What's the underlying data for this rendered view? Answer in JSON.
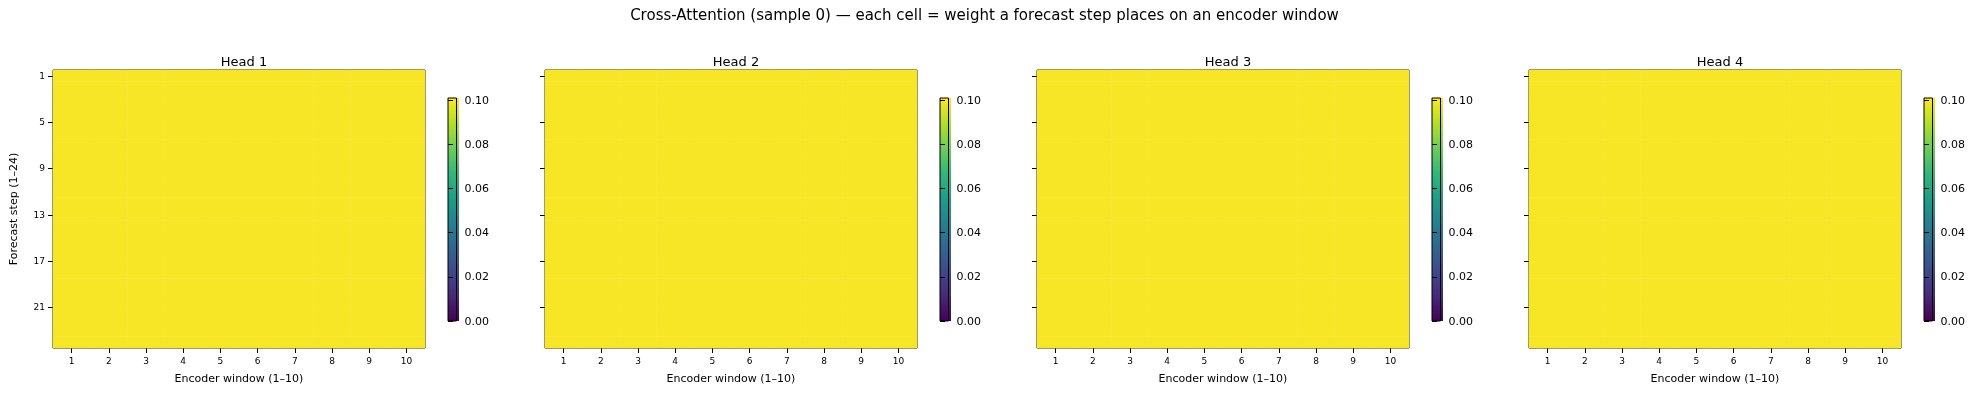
{
  "chart_data": [
    {
      "type": "heatmap",
      "title": "Head 1",
      "xlabel": "Encoder window (1–10)",
      "ylabel": "Forecast step (1–24)",
      "annotations": [
        "Cross-Attention (sample 0) — each cell = weight a forecast step places on an encoder window"
      ],
      "categories": [
        "1",
        "2",
        "3",
        "4",
        "5",
        "6",
        "7",
        "8",
        "9",
        "10"
      ],
      "y_categories": [
        "1",
        null,
        null,
        null,
        "5",
        null,
        null,
        null,
        "9",
        null,
        null,
        null,
        "13",
        null,
        null,
        null,
        "17",
        null,
        null,
        null,
        "21",
        null,
        null,
        null
      ],
      "clim": [
        0,
        0.101
      ],
      "cticks": [
        {
          "value": 0,
          "label": "0.00"
        },
        {
          "value": 0.02,
          "label": "0.02"
        },
        {
          "value": 0.04,
          "label": "0.04"
        },
        {
          "value": 0.06,
          "label": "0.06"
        },
        {
          "value": 0.08,
          "label": "0.08"
        },
        {
          "value": 0.1,
          "label": "0.10"
        }
      ],
      "cells": [
        [
          0.1,
          0.1,
          0.1,
          0.1,
          0.1,
          0.1,
          0.1,
          0.1,
          0.1,
          0.1
        ],
        [
          0.1,
          0.1,
          0.1,
          0.1,
          0.1,
          0.1,
          0.1,
          0.1,
          0.1,
          0.1
        ],
        [
          0.1,
          0.1,
          0.1,
          0.1,
          0.1,
          0.1,
          0.1,
          0.1,
          0.1,
          0.1
        ],
        [
          0.1,
          0.1,
          0.1,
          0.1,
          0.1,
          0.1,
          0.1,
          0.1,
          0.1,
          0.1
        ],
        [
          0.1,
          0.1,
          0.1,
          0.1,
          0.1,
          0.1,
          0.1,
          0.1,
          0.1,
          0.1
        ],
        [
          0.1,
          0.1,
          0.1,
          0.1,
          0.1,
          0.1,
          0.1,
          0.1,
          0.1,
          0.1
        ],
        [
          0.1,
          0.1,
          0.1,
          0.1,
          0.1,
          0.1,
          0.1,
          0.1,
          0.1,
          0.1
        ],
        [
          0.1,
          0.1,
          0.1,
          0.1,
          0.1,
          0.1,
          0.1,
          0.1,
          0.1,
          0.1
        ],
        [
          0.1,
          0.1,
          0.1,
          0.1,
          0.1,
          0.1,
          0.1,
          0.1,
          0.1,
          0.1
        ],
        [
          0.1,
          0.1,
          0.1,
          0.1,
          0.1,
          0.1,
          0.1,
          0.1,
          0.1,
          0.1
        ],
        [
          0.1,
          0.1,
          0.1,
          0.1,
          0.1,
          0.1,
          0.1,
          0.1,
          0.1,
          0.1
        ],
        [
          0.1,
          0.1,
          0.1,
          0.1,
          0.1,
          0.1,
          0.1,
          0.1,
          0.1,
          0.1
        ],
        [
          0.1,
          0.1,
          0.1,
          0.1,
          0.1,
          0.1,
          0.1,
          0.1,
          0.1,
          0.1
        ],
        [
          0.1,
          0.1,
          0.1,
          0.1,
          0.1,
          0.1,
          0.1,
          0.1,
          0.1,
          0.1
        ],
        [
          0.1,
          0.1,
          0.1,
          0.1,
          0.1,
          0.1,
          0.1,
          0.1,
          0.1,
          0.1
        ],
        [
          0.1,
          0.1,
          0.1,
          0.1,
          0.1,
          0.1,
          0.1,
          0.1,
          0.1,
          0.1
        ],
        [
          0.1,
          0.1,
          0.1,
          0.1,
          0.1,
          0.1,
          0.1,
          0.1,
          0.1,
          0.1
        ],
        [
          0.1,
          0.1,
          0.1,
          0.1,
          0.1,
          0.1,
          0.1,
          0.1,
          0.1,
          0.1
        ],
        [
          0.1,
          0.1,
          0.1,
          0.1,
          0.1,
          0.1,
          0.1,
          0.1,
          0.1,
          0.1
        ],
        [
          0.1,
          0.1,
          0.1,
          0.1,
          0.1,
          0.1,
          0.1,
          0.1,
          0.1,
          0.1
        ],
        [
          0.1,
          0.1,
          0.1,
          0.1,
          0.1,
          0.1,
          0.1,
          0.1,
          0.1,
          0.1
        ],
        [
          0.1,
          0.1,
          0.1,
          0.1,
          0.1,
          0.1,
          0.1,
          0.1,
          0.1,
          0.1
        ],
        [
          0.1,
          0.1,
          0.1,
          0.1,
          0.1,
          0.1,
          0.1,
          0.1,
          0.1,
          0.1
        ],
        [
          0.1,
          0.1,
          0.1,
          0.1,
          0.1,
          0.1,
          0.1,
          0.1,
          0.1,
          0.1
        ]
      ]
    },
    {
      "type": "heatmap",
      "title": "Head 2",
      "xlabel": "Encoder window (1–10)",
      "tick_labels": "x",
      "categories": [
        "1",
        "2",
        "3",
        "4",
        "5",
        "6",
        "7",
        "8",
        "9",
        "10"
      ],
      "y_categories": [
        "1",
        null,
        null,
        null,
        "5",
        null,
        null,
        null,
        "9",
        null,
        null,
        null,
        "13",
        null,
        null,
        null,
        "17",
        null,
        null,
        null,
        "21",
        null,
        null,
        null
      ],
      "clim": [
        0,
        0.101
      ],
      "cticks": [
        {
          "value": 0,
          "label": "0.00"
        },
        {
          "value": 0.02,
          "label": "0.02"
        },
        {
          "value": 0.04,
          "label": "0.04"
        },
        {
          "value": 0.06,
          "label": "0.06"
        },
        {
          "value": 0.08,
          "label": "0.08"
        },
        {
          "value": 0.1,
          "label": "0.10"
        }
      ],
      "cells": [
        [
          0.1,
          0.1,
          0.1,
          0.1,
          0.1,
          0.1,
          0.1,
          0.1,
          0.1,
          0.1
        ],
        [
          0.1,
          0.1,
          0.1,
          0.1,
          0.1,
          0.1,
          0.1,
          0.1,
          0.1,
          0.1
        ],
        [
          0.1,
          0.1,
          0.1,
          0.1,
          0.1,
          0.1,
          0.1,
          0.1,
          0.1,
          0.1
        ],
        [
          0.1,
          0.1,
          0.1,
          0.1,
          0.1,
          0.1,
          0.1,
          0.1,
          0.1,
          0.1
        ],
        [
          0.1,
          0.1,
          0.1,
          0.1,
          0.1,
          0.1,
          0.1,
          0.1,
          0.1,
          0.1
        ],
        [
          0.1,
          0.1,
          0.1,
          0.1,
          0.1,
          0.1,
          0.1,
          0.1,
          0.1,
          0.1
        ],
        [
          0.1,
          0.1,
          0.1,
          0.1,
          0.1,
          0.1,
          0.1,
          0.1,
          0.1,
          0.1
        ],
        [
          0.1,
          0.1,
          0.1,
          0.1,
          0.1,
          0.1,
          0.1,
          0.1,
          0.1,
          0.1
        ],
        [
          0.1,
          0.1,
          0.1,
          0.1,
          0.1,
          0.1,
          0.1,
          0.1,
          0.1,
          0.1
        ],
        [
          0.1,
          0.1,
          0.1,
          0.1,
          0.1,
          0.1,
          0.1,
          0.1,
          0.1,
          0.1
        ],
        [
          0.1,
          0.1,
          0.1,
          0.1,
          0.1,
          0.1,
          0.1,
          0.1,
          0.1,
          0.1
        ],
        [
          0.1,
          0.1,
          0.1,
          0.1,
          0.1,
          0.1,
          0.1,
          0.1,
          0.1,
          0.1
        ],
        [
          0.1,
          0.1,
          0.1,
          0.1,
          0.1,
          0.1,
          0.1,
          0.1,
          0.1,
          0.1
        ],
        [
          0.1,
          0.1,
          0.1,
          0.1,
          0.1,
          0.1,
          0.1,
          0.1,
          0.1,
          0.1
        ],
        [
          0.1,
          0.1,
          0.1,
          0.1,
          0.1,
          0.1,
          0.1,
          0.1,
          0.1,
          0.1
        ],
        [
          0.1,
          0.1,
          0.1,
          0.1,
          0.1,
          0.1,
          0.1,
          0.1,
          0.1,
          0.1
        ],
        [
          0.1,
          0.1,
          0.1,
          0.1,
          0.1,
          0.1,
          0.1,
          0.1,
          0.1,
          0.1
        ],
        [
          0.1,
          0.1,
          0.1,
          0.1,
          0.1,
          0.1,
          0.1,
          0.1,
          0.1,
          0.1
        ],
        [
          0.1,
          0.1,
          0.1,
          0.1,
          0.1,
          0.1,
          0.1,
          0.1,
          0.1,
          0.1
        ],
        [
          0.1,
          0.1,
          0.1,
          0.1,
          0.1,
          0.1,
          0.1,
          0.1,
          0.1,
          0.1
        ],
        [
          0.1,
          0.1,
          0.1,
          0.1,
          0.1,
          0.1,
          0.1,
          0.1,
          0.1,
          0.1
        ],
        [
          0.1,
          0.1,
          0.1,
          0.1,
          0.1,
          0.1,
          0.1,
          0.1,
          0.1,
          0.1
        ],
        [
          0.1,
          0.1,
          0.1,
          0.1,
          0.1,
          0.1,
          0.1,
          0.1,
          0.1,
          0.1
        ],
        [
          0.1,
          0.1,
          0.1,
          0.1,
          0.1,
          0.1,
          0.1,
          0.1,
          0.1,
          0.1
        ]
      ]
    },
    {
      "type": "heatmap",
      "title": "Head 3",
      "xlabel": "Encoder window (1–10)",
      "tick_labels": "x",
      "categories": [
        "1",
        "2",
        "3",
        "4",
        "5",
        "6",
        "7",
        "8",
        "9",
        "10"
      ],
      "y_categories": [
        "1",
        null,
        null,
        null,
        "5",
        null,
        null,
        null,
        "9",
        null,
        null,
        null,
        "13",
        null,
        null,
        null,
        "17",
        null,
        null,
        null,
        "21",
        null,
        null,
        null
      ],
      "clim": [
        0,
        0.101
      ],
      "cticks": [
        {
          "value": 0,
          "label": "0.00"
        },
        {
          "value": 0.02,
          "label": "0.02"
        },
        {
          "value": 0.04,
          "label": "0.04"
        },
        {
          "value": 0.06,
          "label": "0.06"
        },
        {
          "value": 0.08,
          "label": "0.08"
        },
        {
          "value": 0.1,
          "label": "0.10"
        }
      ],
      "cells": [
        [
          0.1,
          0.1,
          0.1,
          0.1,
          0.1,
          0.1,
          0.1,
          0.1,
          0.1,
          0.1
        ],
        [
          0.1,
          0.1,
          0.1,
          0.1,
          0.1,
          0.1,
          0.1,
          0.1,
          0.1,
          0.1
        ],
        [
          0.1,
          0.1,
          0.1,
          0.1,
          0.1,
          0.1,
          0.1,
          0.1,
          0.1,
          0.1
        ],
        [
          0.1,
          0.1,
          0.1,
          0.1,
          0.1,
          0.1,
          0.1,
          0.1,
          0.1,
          0.1
        ],
        [
          0.1,
          0.1,
          0.1,
          0.1,
          0.1,
          0.1,
          0.1,
          0.1,
          0.1,
          0.1
        ],
        [
          0.1,
          0.1,
          0.1,
          0.1,
          0.1,
          0.1,
          0.1,
          0.1,
          0.1,
          0.1
        ],
        [
          0.1,
          0.1,
          0.1,
          0.1,
          0.1,
          0.1,
          0.1,
          0.1,
          0.1,
          0.1
        ],
        [
          0.1,
          0.1,
          0.1,
          0.1,
          0.1,
          0.1,
          0.1,
          0.1,
          0.1,
          0.1
        ],
        [
          0.1,
          0.1,
          0.1,
          0.1,
          0.1,
          0.1,
          0.1,
          0.1,
          0.1,
          0.1
        ],
        [
          0.1,
          0.1,
          0.1,
          0.1,
          0.1,
          0.1,
          0.1,
          0.1,
          0.1,
          0.1
        ],
        [
          0.1,
          0.1,
          0.1,
          0.1,
          0.1,
          0.1,
          0.1,
          0.1,
          0.1,
          0.1
        ],
        [
          0.1,
          0.1,
          0.1,
          0.1,
          0.1,
          0.1,
          0.1,
          0.1,
          0.1,
          0.1
        ],
        [
          0.1,
          0.1,
          0.1,
          0.1,
          0.1,
          0.1,
          0.1,
          0.1,
          0.1,
          0.1
        ],
        [
          0.1,
          0.1,
          0.1,
          0.1,
          0.1,
          0.1,
          0.1,
          0.1,
          0.1,
          0.1
        ],
        [
          0.1,
          0.1,
          0.1,
          0.1,
          0.1,
          0.1,
          0.1,
          0.1,
          0.1,
          0.1
        ],
        [
          0.1,
          0.1,
          0.1,
          0.1,
          0.1,
          0.1,
          0.1,
          0.1,
          0.1,
          0.1
        ],
        [
          0.1,
          0.1,
          0.1,
          0.1,
          0.1,
          0.1,
          0.1,
          0.1,
          0.1,
          0.1
        ],
        [
          0.1,
          0.1,
          0.1,
          0.1,
          0.1,
          0.1,
          0.1,
          0.1,
          0.1,
          0.1
        ],
        [
          0.1,
          0.1,
          0.1,
          0.1,
          0.1,
          0.1,
          0.1,
          0.1,
          0.1,
          0.1
        ],
        [
          0.1,
          0.1,
          0.1,
          0.1,
          0.1,
          0.1,
          0.1,
          0.1,
          0.1,
          0.1
        ],
        [
          0.1,
          0.1,
          0.1,
          0.1,
          0.1,
          0.1,
          0.1,
          0.1,
          0.1,
          0.1
        ],
        [
          0.1,
          0.1,
          0.1,
          0.1,
          0.1,
          0.1,
          0.1,
          0.1,
          0.1,
          0.1
        ],
        [
          0.1,
          0.1,
          0.1,
          0.1,
          0.1,
          0.1,
          0.1,
          0.1,
          0.1,
          0.1
        ],
        [
          0.1,
          0.1,
          0.1,
          0.1,
          0.1,
          0.1,
          0.1,
          0.1,
          0.1,
          0.1
        ]
      ]
    },
    {
      "type": "heatmap",
      "title": "Head 4",
      "xlabel": "Encoder window (1–10)",
      "tick_labels": "x",
      "categories": [
        "1",
        "2",
        "3",
        "4",
        "5",
        "6",
        "7",
        "8",
        "9",
        "10"
      ],
      "y_categories": [
        "1",
        null,
        null,
        null,
        "5",
        null,
        null,
        null,
        "9",
        null,
        null,
        null,
        "13",
        null,
        null,
        null,
        "17",
        null,
        null,
        null,
        "21",
        null,
        null,
        null
      ],
      "clim": [
        0,
        0.101
      ],
      "cticks": [
        {
          "value": 0,
          "label": "0.00"
        },
        {
          "value": 0.02,
          "label": "0.02"
        },
        {
          "value": 0.04,
          "label": "0.04"
        },
        {
          "value": 0.06,
          "label": "0.06"
        },
        {
          "value": 0.08,
          "label": "0.08"
        },
        {
          "value": 0.1,
          "label": "0.10"
        }
      ],
      "cells": [
        [
          0.1,
          0.1,
          0.1,
          0.1,
          0.1,
          0.1,
          0.1,
          0.1,
          0.1,
          0.1
        ],
        [
          0.1,
          0.1,
          0.1,
          0.1,
          0.1,
          0.1,
          0.1,
          0.1,
          0.1,
          0.1
        ],
        [
          0.1,
          0.1,
          0.1,
          0.1,
          0.1,
          0.1,
          0.1,
          0.1,
          0.1,
          0.1
        ],
        [
          0.1,
          0.1,
          0.1,
          0.1,
          0.1,
          0.1,
          0.1,
          0.1,
          0.1,
          0.1
        ],
        [
          0.1,
          0.1,
          0.1,
          0.1,
          0.1,
          0.1,
          0.1,
          0.1,
          0.1,
          0.1
        ],
        [
          0.1,
          0.1,
          0.1,
          0.1,
          0.1,
          0.1,
          0.1,
          0.1,
          0.1,
          0.1
        ],
        [
          0.1,
          0.1,
          0.1,
          0.1,
          0.1,
          0.1,
          0.1,
          0.1,
          0.1,
          0.1
        ],
        [
          0.1,
          0.1,
          0.1,
          0.1,
          0.1,
          0.1,
          0.1,
          0.1,
          0.1,
          0.1
        ],
        [
          0.1,
          0.1,
          0.1,
          0.1,
          0.1,
          0.1,
          0.1,
          0.1,
          0.1,
          0.1
        ],
        [
          0.1,
          0.1,
          0.1,
          0.1,
          0.1,
          0.1,
          0.1,
          0.1,
          0.1,
          0.1
        ],
        [
          0.1,
          0.1,
          0.1,
          0.1,
          0.1,
          0.1,
          0.1,
          0.1,
          0.1,
          0.1
        ],
        [
          0.1,
          0.1,
          0.1,
          0.1,
          0.1,
          0.1,
          0.1,
          0.1,
          0.1,
          0.1
        ],
        [
          0.1,
          0.1,
          0.1,
          0.1,
          0.1,
          0.1,
          0.1,
          0.1,
          0.1,
          0.1
        ],
        [
          0.1,
          0.1,
          0.1,
          0.1,
          0.1,
          0.1,
          0.1,
          0.1,
          0.1,
          0.1
        ],
        [
          0.1,
          0.1,
          0.1,
          0.1,
          0.1,
          0.1,
          0.1,
          0.1,
          0.1,
          0.1
        ],
        [
          0.1,
          0.1,
          0.1,
          0.1,
          0.1,
          0.1,
          0.1,
          0.1,
          0.1,
          0.1
        ],
        [
          0.1,
          0.1,
          0.1,
          0.1,
          0.1,
          0.1,
          0.1,
          0.1,
          0.1,
          0.1
        ],
        [
          0.1,
          0.1,
          0.1,
          0.1,
          0.1,
          0.1,
          0.1,
          0.1,
          0.1,
          0.1
        ],
        [
          0.1,
          0.1,
          0.1,
          0.1,
          0.1,
          0.1,
          0.1,
          0.1,
          0.1,
          0.1
        ],
        [
          0.1,
          0.1,
          0.1,
          0.1,
          0.1,
          0.1,
          0.1,
          0.1,
          0.1,
          0.1
        ],
        [
          0.1,
          0.1,
          0.1,
          0.1,
          0.1,
          0.1,
          0.1,
          0.1,
          0.1,
          0.1
        ],
        [
          0.1,
          0.1,
          0.1,
          0.1,
          0.1,
          0.1,
          0.1,
          0.1,
          0.1,
          0.1
        ],
        [
          0.1,
          0.1,
          0.1,
          0.1,
          0.1,
          0.1,
          0.1,
          0.1,
          0.1,
          0.1
        ],
        [
          0.1,
          0.1,
          0.1,
          0.1,
          0.1,
          0.1,
          0.1,
          0.1,
          0.1,
          0.1
        ]
      ]
    }
  ]
}
